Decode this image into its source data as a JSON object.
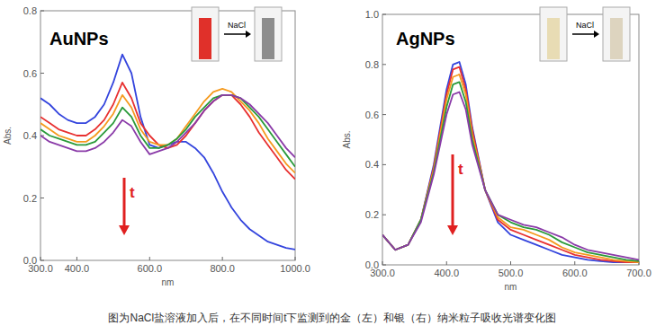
{
  "chart_data": [
    {
      "type": "line",
      "title": "AuNPs",
      "x_label": "nm",
      "y_label": "Abs.",
      "annotations": [
        "NaCl",
        "t"
      ],
      "x": [
        300,
        325,
        350,
        375,
        400,
        425,
        450,
        475,
        500,
        525,
        550,
        575,
        600,
        625,
        650,
        675,
        700,
        725,
        750,
        775,
        800,
        825,
        850,
        875,
        900,
        925,
        950,
        975,
        1000
      ],
      "series": [
        {
          "color": "#3344dd",
          "values": [
            0.52,
            0.5,
            0.47,
            0.45,
            0.44,
            0.44,
            0.46,
            0.5,
            0.57,
            0.66,
            0.6,
            0.46,
            0.37,
            0.36,
            0.37,
            0.38,
            0.38,
            0.36,
            0.33,
            0.28,
            0.22,
            0.17,
            0.13,
            0.1,
            0.08,
            0.06,
            0.05,
            0.04,
            0.035
          ]
        },
        {
          "color": "#e83030",
          "values": [
            0.46,
            0.44,
            0.42,
            0.41,
            0.4,
            0.4,
            0.42,
            0.45,
            0.5,
            0.57,
            0.52,
            0.44,
            0.4,
            0.37,
            0.36,
            0.37,
            0.4,
            0.44,
            0.48,
            0.51,
            0.53,
            0.53,
            0.5,
            0.46,
            0.41,
            0.37,
            0.33,
            0.29,
            0.26
          ]
        },
        {
          "color": "#f59a1e",
          "values": [
            0.44,
            0.42,
            0.4,
            0.39,
            0.38,
            0.38,
            0.4,
            0.43,
            0.47,
            0.53,
            0.49,
            0.42,
            0.38,
            0.37,
            0.37,
            0.39,
            0.43,
            0.47,
            0.51,
            0.54,
            0.55,
            0.54,
            0.51,
            0.48,
            0.44,
            0.39,
            0.35,
            0.31,
            0.28
          ]
        },
        {
          "color": "#2a9a3a",
          "values": [
            0.42,
            0.4,
            0.39,
            0.38,
            0.37,
            0.37,
            0.38,
            0.41,
            0.44,
            0.49,
            0.46,
            0.4,
            0.36,
            0.36,
            0.37,
            0.39,
            0.42,
            0.46,
            0.49,
            0.52,
            0.53,
            0.53,
            0.52,
            0.49,
            0.46,
            0.42,
            0.38,
            0.34,
            0.3
          ]
        },
        {
          "color": "#8a3aa8",
          "values": [
            0.4,
            0.38,
            0.37,
            0.36,
            0.35,
            0.35,
            0.36,
            0.38,
            0.41,
            0.45,
            0.43,
            0.38,
            0.34,
            0.35,
            0.36,
            0.38,
            0.41,
            0.44,
            0.48,
            0.51,
            0.53,
            0.53,
            0.52,
            0.5,
            0.47,
            0.44,
            0.4,
            0.36,
            0.33
          ]
        }
      ],
      "xlim": [
        300,
        1000
      ],
      "xticks": [
        {
          "value": 300,
          "label": "300.0"
        },
        {
          "value": 400,
          "label": "400.0"
        },
        {
          "value": 600,
          "label": "600.0"
        },
        {
          "value": 800,
          "label": "800.0"
        },
        {
          "value": 1000,
          "label": "1000.0"
        }
      ],
      "ylim": [
        0,
        0.8
      ],
      "yticks": [
        {
          "value": 0,
          "label": "0.0"
        },
        0.2,
        0.4,
        0.6,
        0.8
      ],
      "grid": false
    },
    {
      "type": "line",
      "title": "AgNPs",
      "x_label": "nm",
      "y_label": "Abs.",
      "annotations": [
        "NaCl",
        "t"
      ],
      "x": [
        300,
        320,
        340,
        360,
        380,
        400,
        410,
        420,
        430,
        440,
        460,
        480,
        500,
        520,
        540,
        560,
        580,
        600,
        620,
        640,
        660,
        680,
        700
      ],
      "series": [
        {
          "color": "#3344dd",
          "values": [
            0.12,
            0.06,
            0.08,
            0.18,
            0.4,
            0.7,
            0.8,
            0.81,
            0.72,
            0.55,
            0.3,
            0.17,
            0.12,
            0.1,
            0.08,
            0.06,
            0.04,
            0.03,
            0.02,
            0.015,
            0.01,
            0.01,
            0.01
          ]
        },
        {
          "color": "#e83030",
          "values": [
            0.12,
            0.06,
            0.08,
            0.18,
            0.39,
            0.68,
            0.78,
            0.79,
            0.7,
            0.54,
            0.3,
            0.18,
            0.14,
            0.12,
            0.1,
            0.08,
            0.06,
            0.04,
            0.03,
            0.02,
            0.015,
            0.01,
            0.01
          ]
        },
        {
          "color": "#f59a1e",
          "values": [
            0.12,
            0.06,
            0.08,
            0.18,
            0.38,
            0.66,
            0.75,
            0.76,
            0.68,
            0.52,
            0.3,
            0.19,
            0.15,
            0.14,
            0.12,
            0.1,
            0.07,
            0.05,
            0.04,
            0.03,
            0.02,
            0.015,
            0.01
          ]
        },
        {
          "color": "#2a9a3a",
          "values": [
            0.12,
            0.06,
            0.08,
            0.18,
            0.37,
            0.63,
            0.72,
            0.73,
            0.65,
            0.5,
            0.3,
            0.2,
            0.17,
            0.15,
            0.14,
            0.12,
            0.09,
            0.07,
            0.05,
            0.04,
            0.03,
            0.02,
            0.015
          ]
        },
        {
          "color": "#8a3aa8",
          "values": [
            0.12,
            0.06,
            0.08,
            0.17,
            0.36,
            0.6,
            0.68,
            0.69,
            0.62,
            0.48,
            0.3,
            0.2,
            0.18,
            0.16,
            0.15,
            0.13,
            0.11,
            0.08,
            0.06,
            0.05,
            0.04,
            0.03,
            0.02
          ]
        }
      ],
      "xlim": [
        300,
        700
      ],
      "xticks": [
        {
          "value": 300,
          "label": "300.0"
        },
        {
          "value": 400,
          "label": "400.0"
        },
        {
          "value": 500,
          "label": "500.0"
        },
        {
          "value": 600,
          "label": "600.0"
        },
        {
          "value": 700,
          "label": "700.0"
        }
      ],
      "ylim": [
        0,
        1.0
      ],
      "yticks": [
        {
          "value": 0,
          "label": "0.0"
        },
        0.2,
        0.4,
        0.6,
        0.8,
        {
          "value": 1.0,
          "label": "1.0"
        }
      ],
      "grid": false
    }
  ],
  "caption": "图为NaCl盐溶液加入后，在不同时间t下监测到的金（左）和银（右）纳米粒子吸收光谱变化图"
}
